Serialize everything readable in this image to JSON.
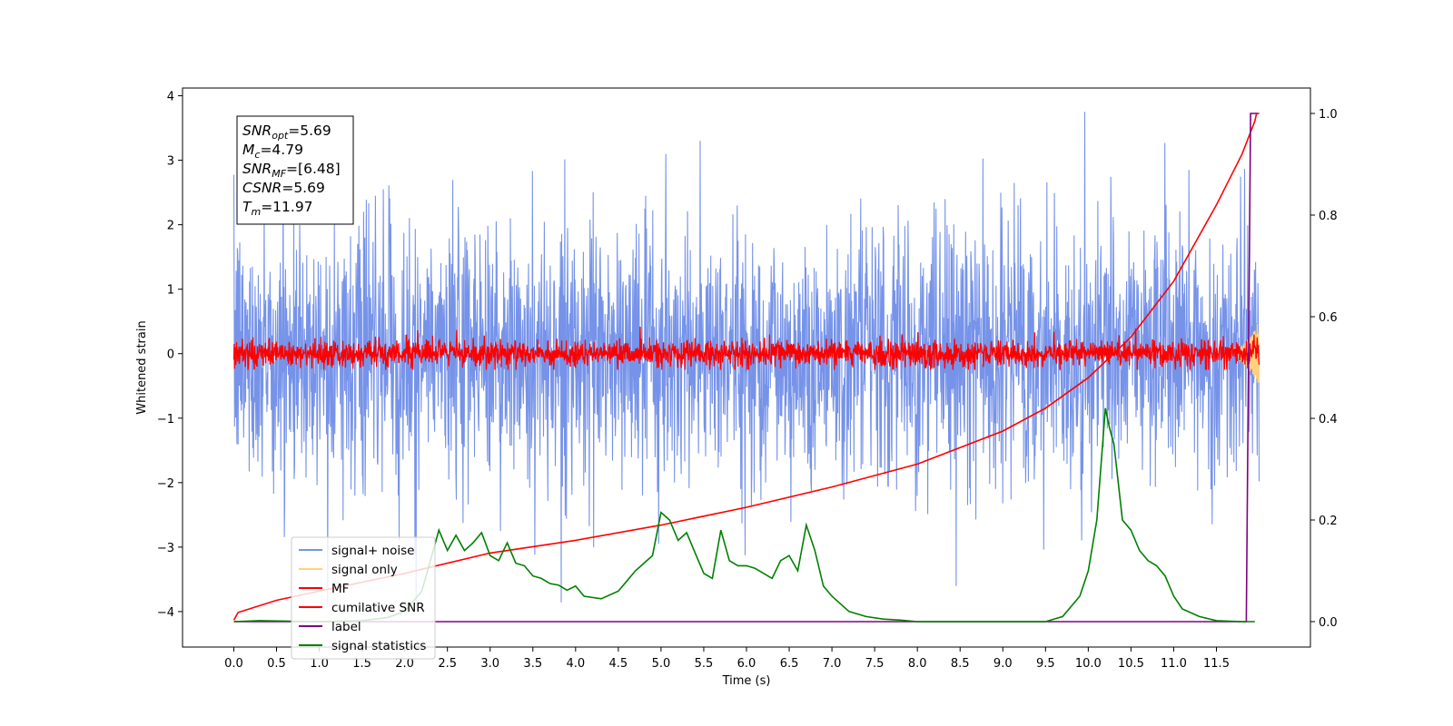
{
  "chart_data": {
    "type": "line",
    "title": "",
    "xlabel": "Time (s)",
    "ylabel": "Whitened strain",
    "y2label": "",
    "xlim": [
      -0.6,
      12.6
    ],
    "ylim": [
      -4.55,
      4.12
    ],
    "y2lim": [
      -0.05,
      1.05
    ],
    "x_ticks": [
      0.0,
      0.5,
      1.0,
      1.5,
      2.0,
      2.5,
      3.0,
      3.5,
      4.0,
      4.5,
      5.0,
      5.5,
      6.0,
      6.5,
      7.0,
      7.5,
      8.0,
      8.5,
      9.0,
      9.5,
      10.0,
      10.5,
      11.0,
      11.5
    ],
    "x_tick_labels": [
      "0.0",
      "0.5",
      "1.0",
      "1.5",
      "2.0",
      "2.5",
      "3.0",
      "3.5",
      "4.0",
      "4.5",
      "5.0",
      "5.5",
      "6.0",
      "6.5",
      "7.0",
      "7.5",
      "8.0",
      "8.5",
      "9.0",
      "9.5",
      "10.0",
      "10.5",
      "11.0",
      "11.5"
    ],
    "y_ticks": [
      -4,
      -3,
      -2,
      -1,
      0,
      1,
      2,
      3,
      4
    ],
    "y_tick_labels": [
      "−4",
      "−3",
      "−2",
      "−1",
      "0",
      "1",
      "2",
      "3",
      "4"
    ],
    "y2_ticks": [
      0.0,
      0.2,
      0.4,
      0.6,
      0.8,
      1.0
    ],
    "y2_tick_labels": [
      "0.0",
      "0.2",
      "0.4",
      "0.6",
      "0.8",
      "1.0"
    ],
    "grid": false,
    "legend_position": "lower-left",
    "info_box": {
      "position": "top-left",
      "lines": [
        {
          "sym": "SNR",
          "sub": "opt",
          "rest": "=5.69"
        },
        {
          "sym": "M",
          "sub": "c",
          "rest": "=4.79"
        },
        {
          "sym": "SNR",
          "sub": "MF",
          "rest": "=[6.48]"
        },
        {
          "sym": "CSNR",
          "sub": "",
          "rest": "=5.69"
        },
        {
          "sym": "T",
          "sub": "m",
          "rest": "=11.97"
        }
      ]
    },
    "series": [
      {
        "name": "signal+ noise",
        "color": "#4169e1",
        "axis": "left",
        "kind": "noise",
        "x_range": [
          0.0,
          12.0
        ],
        "amplitude_std": 1.0,
        "y_min": -3.9,
        "y_max": 3.75
      },
      {
        "name": "signal only",
        "color": "#ffd27f",
        "axis": "left",
        "kind": "chirp",
        "x_range": [
          11.7,
          12.0
        ],
        "y_min": -0.45,
        "y_max": 0.6
      },
      {
        "name": "MF",
        "color": "#ff0000",
        "axis": "left",
        "kind": "noise",
        "x_range": [
          0.0,
          12.0
        ],
        "amplitude_std": 0.1,
        "y_min": -0.25,
        "y_max": 0.65
      },
      {
        "name": "cumilative SNR",
        "color": "#ff0000",
        "axis": "right",
        "kind": "curve",
        "x": [
          0.0,
          0.05,
          0.5,
          1.0,
          2.0,
          3.0,
          4.0,
          5.0,
          6.0,
          7.0,
          8.0,
          9.0,
          9.5,
          10.0,
          10.5,
          11.0,
          11.5,
          11.8,
          11.95,
          11.97
        ],
        "y": [
          0.003,
          0.018,
          0.042,
          0.06,
          0.095,
          0.135,
          0.16,
          0.19,
          0.225,
          0.265,
          0.31,
          0.375,
          0.42,
          0.48,
          0.56,
          0.67,
          0.82,
          0.92,
          0.985,
          1.0
        ]
      },
      {
        "name": "label",
        "color": "#800080",
        "axis": "right",
        "kind": "step",
        "x": [
          0.0,
          11.85,
          11.9,
          12.0
        ],
        "y": [
          0.0,
          0.0,
          1.0,
          1.0
        ]
      },
      {
        "name": "signal statistics",
        "color": "#008000",
        "axis": "right",
        "kind": "curve",
        "x": [
          0.0,
          0.3,
          1.0,
          1.5,
          1.8,
          2.0,
          2.2,
          2.4,
          2.5,
          2.6,
          2.7,
          2.8,
          2.9,
          3.0,
          3.1,
          3.2,
          3.3,
          3.4,
          3.5,
          3.6,
          3.7,
          3.8,
          3.9,
          4.0,
          4.1,
          4.3,
          4.5,
          4.6,
          4.7,
          4.8,
          4.9,
          5.0,
          5.1,
          5.2,
          5.3,
          5.4,
          5.5,
          5.6,
          5.7,
          5.8,
          5.9,
          6.0,
          6.1,
          6.2,
          6.3,
          6.4,
          6.5,
          6.6,
          6.7,
          6.8,
          6.9,
          7.0,
          7.2,
          7.4,
          7.6,
          7.8,
          8.0,
          8.5,
          9.0,
          9.5,
          9.7,
          9.9,
          10.0,
          10.1,
          10.2,
          10.25,
          10.3,
          10.4,
          10.5,
          10.6,
          10.7,
          10.8,
          10.9,
          11.0,
          11.1,
          11.3,
          11.5,
          11.8,
          11.95
        ],
        "y": [
          0.0,
          0.002,
          0.0,
          0.002,
          0.008,
          0.02,
          0.06,
          0.18,
          0.14,
          0.17,
          0.14,
          0.155,
          0.175,
          0.13,
          0.12,
          0.155,
          0.115,
          0.11,
          0.09,
          0.085,
          0.075,
          0.072,
          0.062,
          0.07,
          0.05,
          0.045,
          0.06,
          0.08,
          0.1,
          0.115,
          0.13,
          0.215,
          0.2,
          0.16,
          0.175,
          0.135,
          0.095,
          0.085,
          0.18,
          0.12,
          0.11,
          0.11,
          0.105,
          0.095,
          0.085,
          0.12,
          0.13,
          0.1,
          0.19,
          0.14,
          0.07,
          0.05,
          0.02,
          0.01,
          0.005,
          0.003,
          0.0,
          0.0,
          0.0,
          0.0,
          0.01,
          0.05,
          0.1,
          0.2,
          0.42,
          0.38,
          0.35,
          0.2,
          0.18,
          0.14,
          0.12,
          0.11,
          0.09,
          0.05,
          0.025,
          0.01,
          0.002,
          0.0,
          0.0
        ]
      }
    ]
  }
}
